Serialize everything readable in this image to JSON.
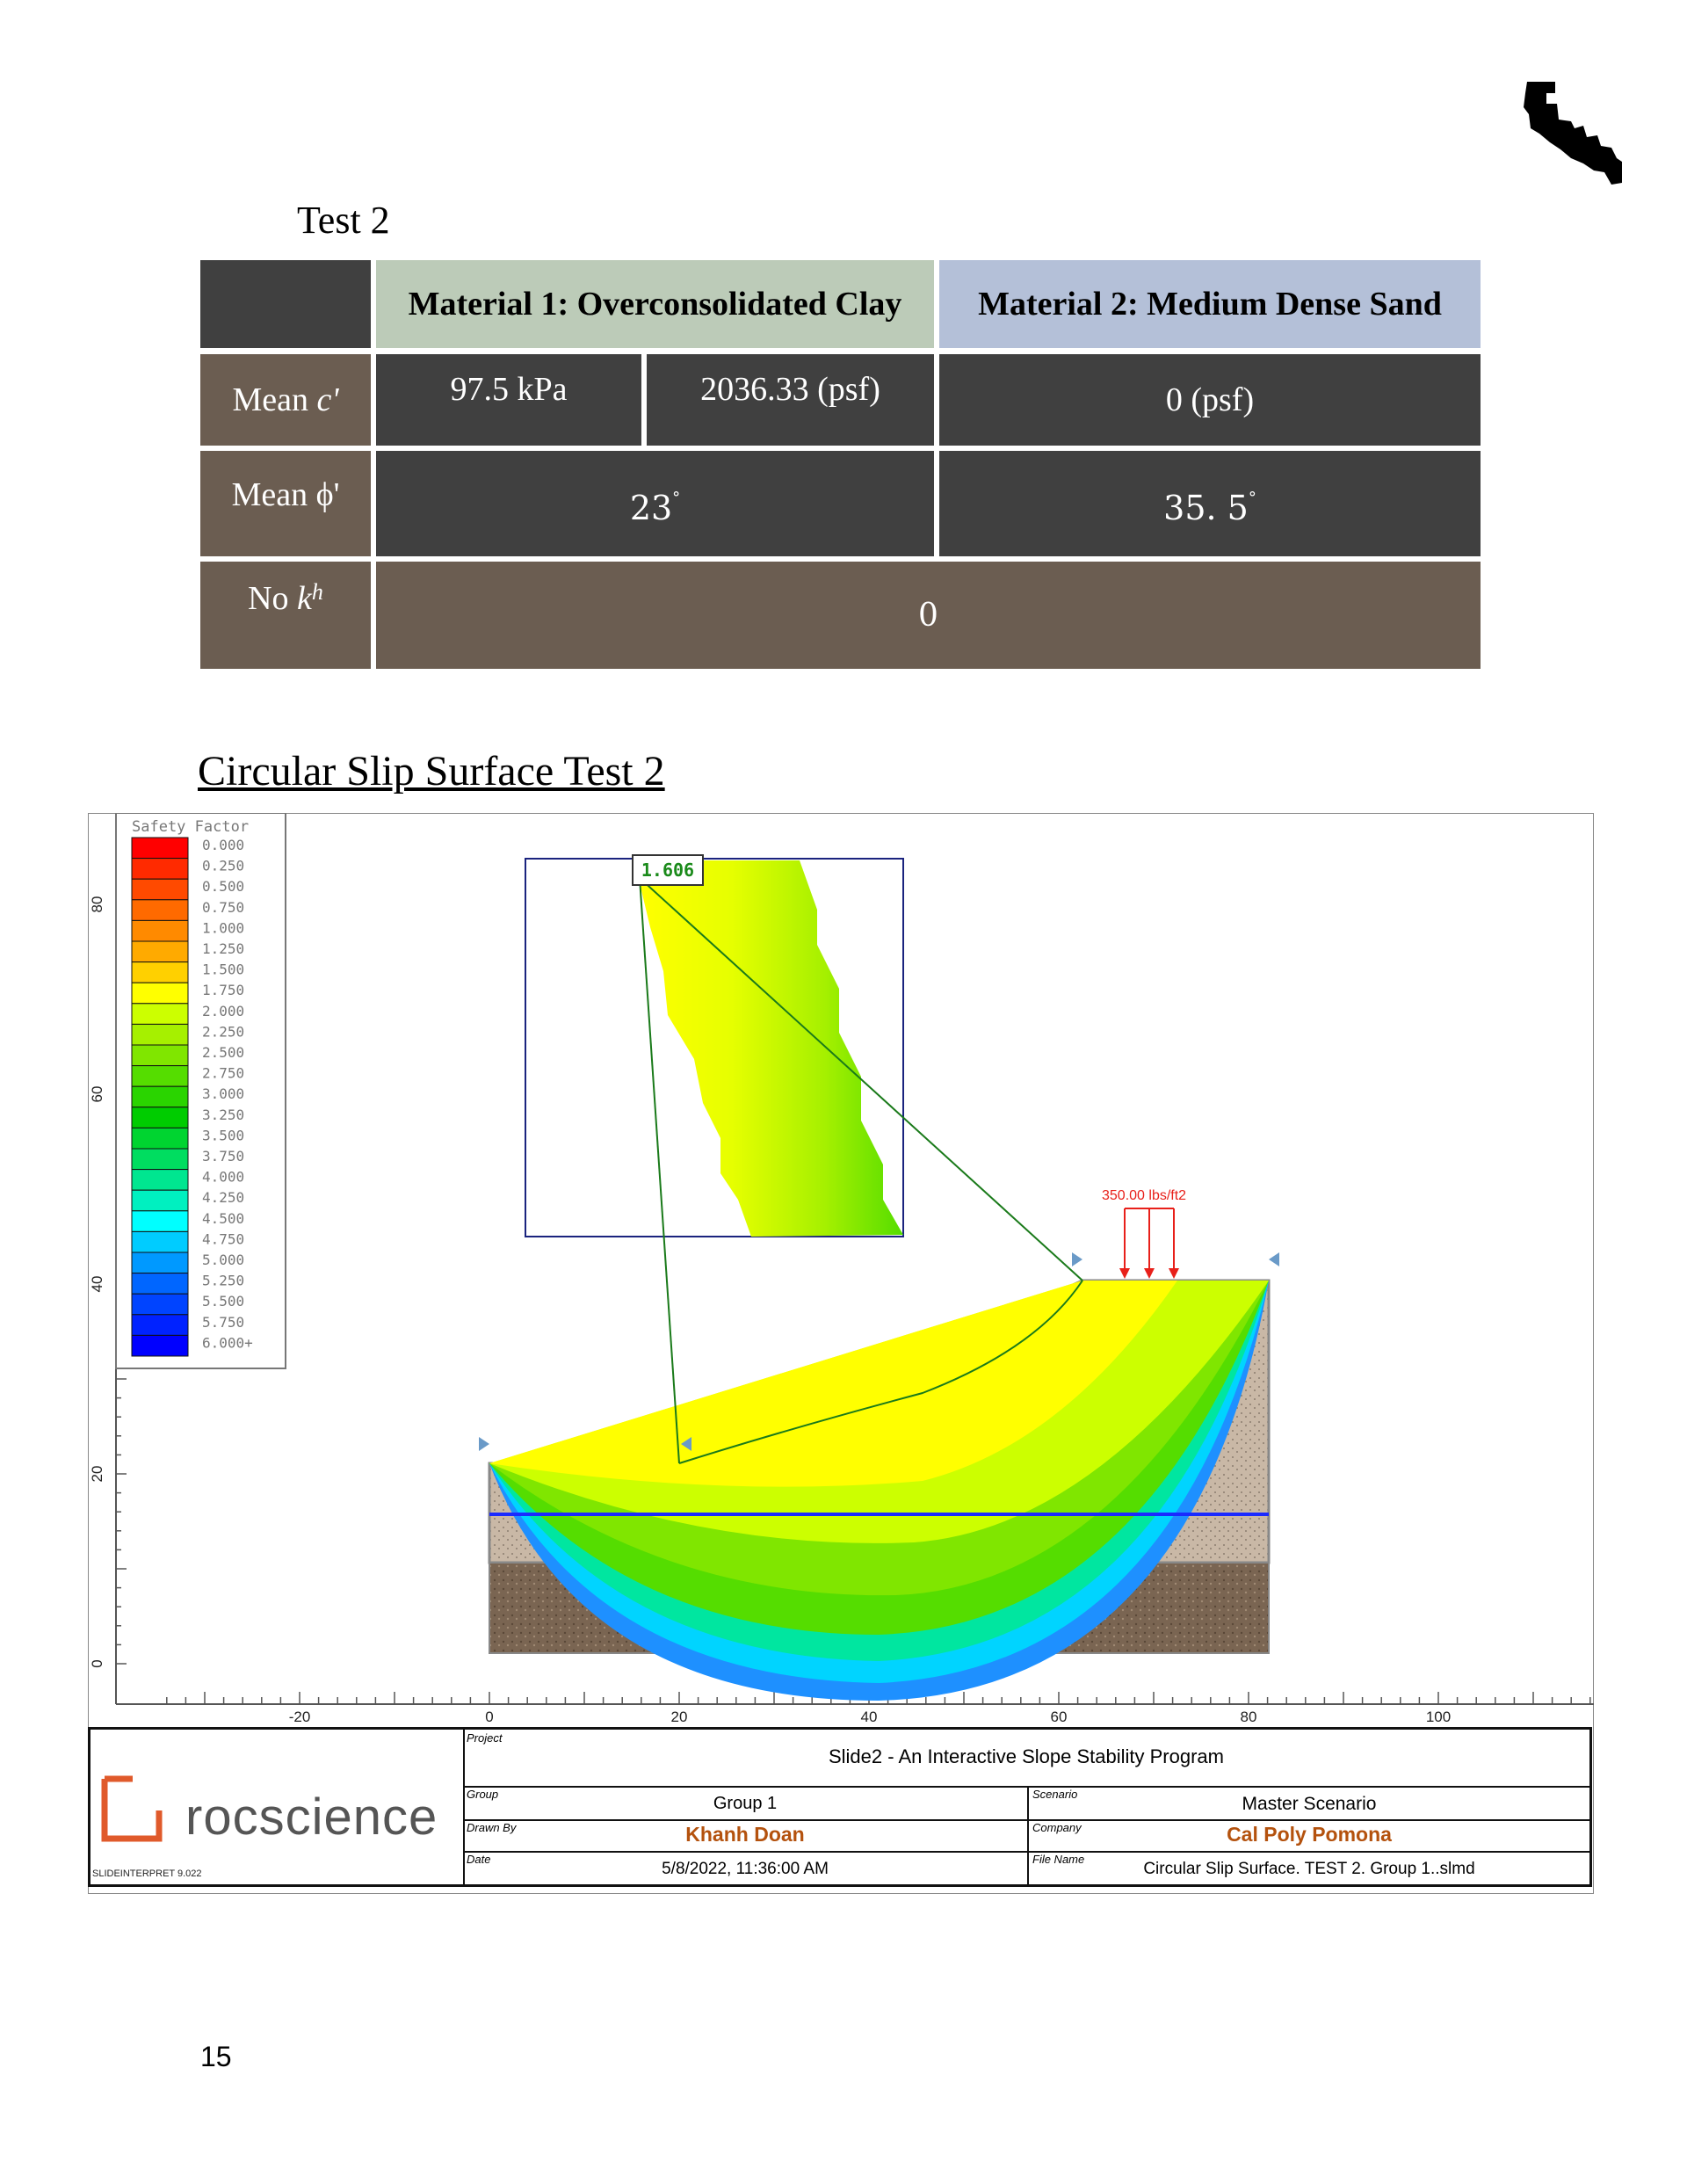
{
  "test_title": "Test 2",
  "table": {
    "header": {
      "material1": "Material 1: Overconsolidated Clay",
      "material2": "Material 2: Medium Dense Sand"
    },
    "rows": {
      "cohesion": {
        "label_prefix": "Mean ",
        "label_var": "c'",
        "m1_kpa": "97.5 kPa",
        "m1_psf": "2036.33 (psf)",
        "m2": "0 (psf)"
      },
      "friction": {
        "label": "Mean ϕ'",
        "m1": "23",
        "m2": "35. 5",
        "degree": "°"
      },
      "seismic": {
        "label_prefix": "No ",
        "label_var": "k",
        "label_sub": "h",
        "value": "0"
      }
    },
    "colors": {
      "dark": "#404040",
      "brown": "#6b5d51",
      "m1_header": "#bccbb8",
      "m2_header": "#b4c0d8"
    }
  },
  "section_title": "Circular Slip Surface Test 2",
  "figure": {
    "legend": {
      "title": "Safety Factor",
      "entries": [
        {
          "label": "0.000",
          "color": "#ff0000"
        },
        {
          "label": "0.250",
          "color": "#ff2a00"
        },
        {
          "label": "0.500",
          "color": "#ff4a00"
        },
        {
          "label": "0.750",
          "color": "#ff6a00"
        },
        {
          "label": "1.000",
          "color": "#ff8a00"
        },
        {
          "label": "1.250",
          "color": "#ffaa00"
        },
        {
          "label": "1.500",
          "color": "#ffd000"
        },
        {
          "label": "1.750",
          "color": "#ffff00"
        },
        {
          "label": "2.000",
          "color": "#ccff00"
        },
        {
          "label": "2.250",
          "color": "#a6f000"
        },
        {
          "label": "2.500",
          "color": "#80e600"
        },
        {
          "label": "2.750",
          "color": "#55dd00"
        },
        {
          "label": "3.000",
          "color": "#2ad400"
        },
        {
          "label": "3.250",
          "color": "#00cc00"
        },
        {
          "label": "3.500",
          "color": "#00d430"
        },
        {
          "label": "3.750",
          "color": "#00dd60"
        },
        {
          "label": "4.000",
          "color": "#00e690"
        },
        {
          "label": "4.250",
          "color": "#00f0c0"
        },
        {
          "label": "4.500",
          "color": "#00ffff"
        },
        {
          "label": "4.750",
          "color": "#00ccff"
        },
        {
          "label": "5.000",
          "color": "#0099ff"
        },
        {
          "label": "5.250",
          "color": "#0066ff"
        },
        {
          "label": "5.500",
          "color": "#0044ff"
        },
        {
          "label": "5.750",
          "color": "#0022ff"
        },
        {
          "label": "6.000+",
          "color": "#0000ff"
        }
      ]
    },
    "y_ticks": [
      "80",
      "60",
      "40",
      "20",
      "0"
    ],
    "x_ticks": [
      "-20",
      "0",
      "20",
      "40",
      "60",
      "80",
      "100"
    ],
    "min_fs": "1.606",
    "load_label": "350.00 lbs/ft2",
    "title_block": {
      "project_label": "Project",
      "project": "Slide2 - An Interactive Slope Stability Program",
      "group_label": "Group",
      "group": "Group 1",
      "scenario_label": "Scenario",
      "scenario": "Master Scenario",
      "drawn_by_label": "Drawn By",
      "drawn_by": "Khanh Doan",
      "company_label": "Company",
      "company": "Cal Poly Pomona",
      "date_label": "Date",
      "date": "5/8/2022, 11:36:00 AM",
      "file_label": "File Name",
      "file": "Circular Slip Surface. TEST 2. Group 1..slmd",
      "logo_text": "rocscience",
      "version": "SLIDEINTERPRET 9.022",
      "accent": "#e05a2b",
      "name_color": "#b4520e"
    }
  },
  "page_number": "15"
}
